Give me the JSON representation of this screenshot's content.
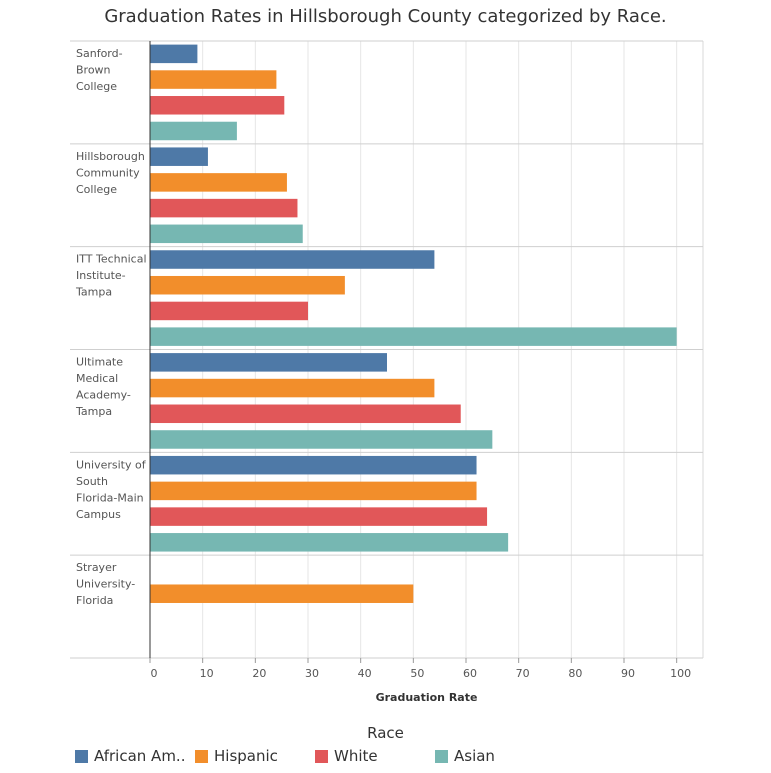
{
  "title": "Graduation Rates in Hillsborough County categorized by Race.",
  "legend": {
    "title": "Race",
    "items": [
      {
        "label": "African Am..",
        "color": "#4e79a7"
      },
      {
        "label": "Hispanic",
        "color": "#f28e2b"
      },
      {
        "label": "White",
        "color": "#e15759"
      },
      {
        "label": "Asian",
        "color": "#76b7b2"
      }
    ]
  },
  "chart_data": {
    "type": "bar",
    "orientation": "horizontal",
    "title": "Graduation Rates in Hillsborough County categorized by Race.",
    "xlabel": "Graduation Rate",
    "ylabel": "",
    "xlim": [
      0,
      105
    ],
    "x_ticks": [
      0,
      10,
      20,
      30,
      40,
      50,
      60,
      70,
      80,
      90,
      100
    ],
    "grid": true,
    "legend_position": "bottom",
    "categories": [
      "Sanford-Brown College",
      "Hillsborough Community College",
      "ITT Technical Institute-Tampa",
      "Ultimate Medical Academy-Tampa",
      "University of South Florida-Main Campus",
      "Strayer University-Florida"
    ],
    "category_lines": [
      [
        "Sanford-",
        "Brown",
        "College"
      ],
      [
        "Hillsborough",
        "Community",
        "College"
      ],
      [
        "ITT Technical",
        "Institute-",
        "Tampa"
      ],
      [
        "Ultimate",
        "Medical",
        "Academy-",
        "Tampa"
      ],
      [
        "University of",
        "South",
        "Florida-Main",
        "Campus"
      ],
      [
        "Strayer",
        "University-",
        "Florida"
      ]
    ],
    "series": [
      {
        "name": "African Am..",
        "color": "#4e79a7",
        "values": [
          9,
          11,
          54,
          45,
          62,
          null
        ]
      },
      {
        "name": "Hispanic",
        "color": "#f28e2b",
        "values": [
          24,
          26,
          37,
          54,
          62,
          50
        ]
      },
      {
        "name": "White",
        "color": "#e15759",
        "values": [
          25.5,
          28,
          30,
          59,
          64,
          null
        ]
      },
      {
        "name": "Asian",
        "color": "#76b7b2",
        "values": [
          16.5,
          29,
          100,
          65,
          68,
          null
        ]
      }
    ]
  }
}
